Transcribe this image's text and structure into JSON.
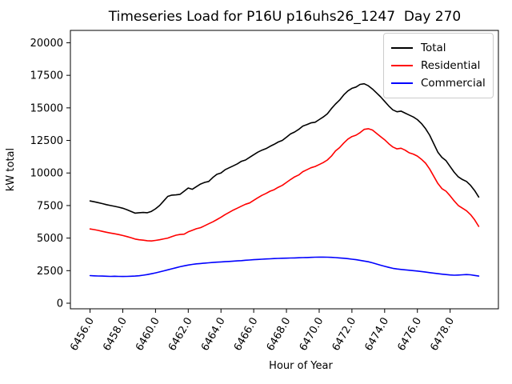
{
  "figure": {
    "title": "Timeseries Load for P16U p16uhs26_1247  Day 270",
    "xlabel": "Hour of Year",
    "ylabel": "kW total"
  },
  "legend": {
    "position": "upper right",
    "entries": [
      {
        "label": "Total",
        "color": "#000000"
      },
      {
        "label": "Residential",
        "color": "#ff0000"
      },
      {
        "label": "Commercial",
        "color": "#0000ff"
      }
    ]
  },
  "chart_data": {
    "type": "line",
    "title": "Timeseries Load for P16U p16uhs26_1247  Day 270",
    "xlabel": "Hour of Year",
    "ylabel": "kW total",
    "grid": false,
    "legend_position": "upper right",
    "xlim": [
      6454.8,
      6480.95
    ],
    "ylim": [
      -430,
      20950
    ],
    "xticks": [
      6456,
      6458,
      6460,
      6462,
      6464,
      6466,
      6468,
      6470,
      6472,
      6474,
      6476,
      6478
    ],
    "xtick_labels": [
      "6456.0",
      "6458.0",
      "6460.0",
      "6462.0",
      "6464.0",
      "6466.0",
      "6468.0",
      "6470.0",
      "6472.0",
      "6474.0",
      "6476.0",
      "6478.0"
    ],
    "yticks": [
      0,
      2500,
      5000,
      7500,
      10000,
      12500,
      15000,
      17500,
      20000
    ],
    "ytick_labels": [
      "0",
      "2500",
      "5000",
      "7500",
      "10000",
      "12500",
      "15000",
      "17500",
      "20000"
    ],
    "x_start": 6456.0,
    "x_step": 0.25,
    "x": [
      6456.0,
      6456.25,
      6456.5,
      6456.75,
      6457.0,
      6457.25,
      6457.5,
      6457.75,
      6458.0,
      6458.25,
      6458.5,
      6458.75,
      6459.0,
      6459.25,
      6459.5,
      6459.75,
      6460.0,
      6460.25,
      6460.5,
      6460.75,
      6461.0,
      6461.25,
      6461.5,
      6461.75,
      6462.0,
      6462.25,
      6462.5,
      6462.75,
      6463.0,
      6463.25,
      6463.5,
      6463.75,
      6464.0,
      6464.25,
      6464.5,
      6464.75,
      6465.0,
      6465.25,
      6465.5,
      6465.75,
      6466.0,
      6466.25,
      6466.5,
      6466.75,
      6467.0,
      6467.25,
      6467.5,
      6467.75,
      6468.0,
      6468.25,
      6468.5,
      6468.75,
      6469.0,
      6469.25,
      6469.5,
      6469.75,
      6470.0,
      6470.25,
      6470.5,
      6470.75,
      6471.0,
      6471.25,
      6471.5,
      6471.75,
      6472.0,
      6472.25,
      6472.5,
      6472.75,
      6473.0,
      6473.25,
      6473.5,
      6473.75,
      6474.0,
      6474.25,
      6474.5,
      6474.75,
      6475.0,
      6475.25,
      6475.5,
      6475.75,
      6476.0,
      6476.25,
      6476.5,
      6476.75,
      6477.0,
      6477.25,
      6477.5,
      6477.75,
      6478.0,
      6478.25,
      6478.5,
      6478.75,
      6479.0,
      6479.25,
      6479.5,
      6479.75
    ],
    "series": [
      {
        "name": "Total",
        "color": "#000000",
        "values": [
          7850,
          7790,
          7720,
          7650,
          7570,
          7500,
          7440,
          7370,
          7290,
          7180,
          7050,
          6920,
          6950,
          6970,
          6950,
          7050,
          7250,
          7500,
          7850,
          8200,
          8300,
          8320,
          8360,
          8600,
          8850,
          8750,
          8950,
          9150,
          9280,
          9350,
          9650,
          9900,
          10000,
          10250,
          10400,
          10550,
          10700,
          10900,
          11000,
          11200,
          11400,
          11600,
          11750,
          11870,
          12050,
          12200,
          12380,
          12500,
          12750,
          13000,
          13150,
          13350,
          13600,
          13720,
          13850,
          13900,
          14100,
          14300,
          14550,
          14950,
          15300,
          15600,
          16000,
          16300,
          16500,
          16600,
          16800,
          16850,
          16700,
          16450,
          16150,
          15850,
          15500,
          15150,
          14850,
          14700,
          14750,
          14600,
          14450,
          14300,
          14100,
          13800,
          13400,
          12900,
          12250,
          11600,
          11200,
          10950,
          10500,
          10050,
          9700,
          9500,
          9350,
          9050,
          8650,
          8150
        ]
      },
      {
        "name": "Residential",
        "color": "#ff0000",
        "values": [
          5700,
          5650,
          5590,
          5520,
          5450,
          5390,
          5330,
          5270,
          5200,
          5120,
          5030,
          4930,
          4870,
          4840,
          4800,
          4780,
          4820,
          4870,
          4940,
          5000,
          5120,
          5220,
          5280,
          5300,
          5480,
          5600,
          5720,
          5800,
          5950,
          6100,
          6250,
          6420,
          6600,
          6800,
          6980,
          7150,
          7300,
          7450,
          7600,
          7700,
          7900,
          8100,
          8280,
          8430,
          8600,
          8720,
          8900,
          9050,
          9280,
          9500,
          9700,
          9850,
          10100,
          10250,
          10400,
          10500,
          10650,
          10800,
          11000,
          11300,
          11700,
          11950,
          12300,
          12600,
          12800,
          12900,
          13100,
          13350,
          13400,
          13300,
          13050,
          12800,
          12550,
          12250,
          12000,
          11850,
          11900,
          11750,
          11550,
          11450,
          11300,
          11050,
          10750,
          10300,
          9750,
          9200,
          8800,
          8600,
          8250,
          7850,
          7500,
          7300,
          7100,
          6800,
          6400,
          5900
        ]
      },
      {
        "name": "Commercial",
        "color": "#0000ff",
        "values": [
          2120,
          2100,
          2090,
          2080,
          2070,
          2060,
          2070,
          2060,
          2050,
          2060,
          2070,
          2080,
          2110,
          2150,
          2200,
          2260,
          2330,
          2400,
          2480,
          2560,
          2640,
          2720,
          2800,
          2870,
          2930,
          2980,
          3020,
          3050,
          3080,
          3100,
          3130,
          3150,
          3170,
          3190,
          3210,
          3230,
          3250,
          3270,
          3300,
          3320,
          3340,
          3360,
          3380,
          3400,
          3410,
          3430,
          3440,
          3450,
          3460,
          3470,
          3480,
          3490,
          3500,
          3510,
          3520,
          3530,
          3540,
          3540,
          3530,
          3520,
          3500,
          3480,
          3450,
          3420,
          3380,
          3340,
          3290,
          3240,
          3180,
          3100,
          3010,
          2920,
          2830,
          2750,
          2680,
          2630,
          2590,
          2560,
          2530,
          2500,
          2470,
          2430,
          2390,
          2350,
          2310,
          2270,
          2230,
          2200,
          2170,
          2150,
          2160,
          2180,
          2200,
          2180,
          2130,
          2080
        ]
      }
    ]
  }
}
